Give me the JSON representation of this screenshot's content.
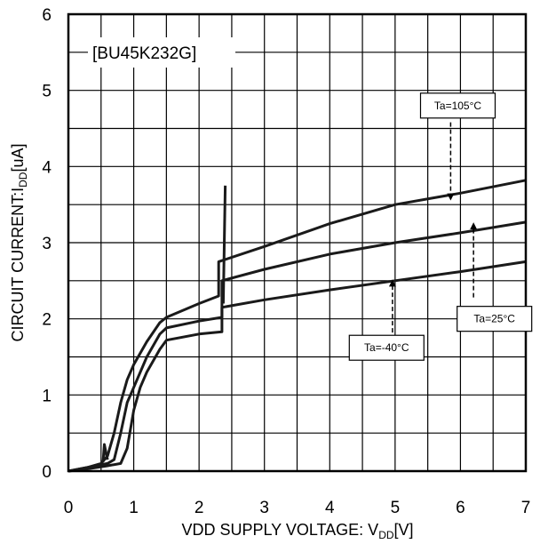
{
  "chart_data": {
    "type": "line",
    "part_label": "[BU45K232G]",
    "xlabel_main": "VDD SUPPLY VOLTAGE:  V",
    "xlabel_sub": "DD",
    "xlabel_unit": "[V]",
    "ylabel_main": "CIRCUIT CURRENT:I",
    "ylabel_sub": "DD",
    "ylabel_unit": "[uA]",
    "xlim": [
      0,
      7
    ],
    "ylim": [
      0,
      6
    ],
    "x_major_ticks": [
      0,
      1,
      2,
      3,
      4,
      5,
      6,
      7
    ],
    "x_tick_labels": [
      "0",
      "1",
      "2",
      "3",
      "4",
      "5",
      "6",
      "7"
    ],
    "y_major_ticks": [
      0,
      1,
      2,
      3,
      4,
      5,
      6
    ],
    "y_tick_labels": [
      "0",
      "1",
      "2",
      "3",
      "4",
      "5",
      "6"
    ],
    "minor_grid_step_x": 0.5,
    "minor_grid_step_y": 0.5,
    "grid": true,
    "line_color": "#1a1a1a",
    "series": [
      {
        "condition": "Ta=105°C",
        "points": [
          [
            0,
            0
          ],
          [
            0.3,
            0.05
          ],
          [
            0.5,
            0.1
          ],
          [
            0.6,
            0.2
          ],
          [
            0.7,
            0.5
          ],
          [
            0.8,
            0.9
          ],
          [
            0.9,
            1.2
          ],
          [
            1.0,
            1.4
          ],
          [
            1.2,
            1.7
          ],
          [
            1.4,
            1.95
          ],
          [
            1.5,
            2.02
          ],
          [
            2.0,
            2.2
          ],
          [
            2.3,
            2.3
          ],
          [
            2.3,
            2.75
          ],
          [
            3.0,
            2.95
          ],
          [
            4.0,
            3.25
          ],
          [
            5.0,
            3.5
          ],
          [
            6.0,
            3.65
          ],
          [
            7.0,
            3.82
          ]
        ]
      },
      {
        "condition": "Ta=25°C",
        "points": [
          [
            0,
            0
          ],
          [
            0.3,
            0.05
          ],
          [
            0.6,
            0.1
          ],
          [
            0.7,
            0.15
          ],
          [
            0.8,
            0.5
          ],
          [
            0.9,
            0.9
          ],
          [
            1.0,
            1.1
          ],
          [
            1.2,
            1.5
          ],
          [
            1.4,
            1.8
          ],
          [
            1.5,
            1.88
          ],
          [
            2.0,
            1.97
          ],
          [
            2.35,
            2.02
          ],
          [
            2.35,
            2.5
          ],
          [
            3.0,
            2.65
          ],
          [
            4.0,
            2.85
          ],
          [
            5.0,
            3.0
          ],
          [
            6.0,
            3.13
          ],
          [
            7.0,
            3.27
          ]
        ]
      },
      {
        "condition": "Ta=-40°C",
        "points": [
          [
            0,
            0
          ],
          [
            0.3,
            0.03
          ],
          [
            0.6,
            0.07
          ],
          [
            0.8,
            0.1
          ],
          [
            0.9,
            0.3
          ],
          [
            1.0,
            0.8
          ],
          [
            1.1,
            1.1
          ],
          [
            1.2,
            1.3
          ],
          [
            1.4,
            1.6
          ],
          [
            1.5,
            1.72
          ],
          [
            2.0,
            1.8
          ],
          [
            2.35,
            1.83
          ],
          [
            2.35,
            2.15
          ],
          [
            3.0,
            2.25
          ],
          [
            4.0,
            2.38
          ],
          [
            5.0,
            2.5
          ],
          [
            6.0,
            2.62
          ],
          [
            7.0,
            2.75
          ]
        ]
      }
    ],
    "spikes": [
      {
        "points": [
          [
            0.53,
            0.12
          ],
          [
            0.55,
            0.35
          ],
          [
            0.58,
            0.22
          ],
          [
            0.6,
            0.15
          ]
        ]
      },
      {
        "points": [
          [
            2.37,
            2.2
          ],
          [
            2.4,
            3.75
          ]
        ]
      }
    ],
    "annotations": [
      {
        "text": "Ta=105°C",
        "box_center": [
          5.96,
          4.8
        ],
        "arrow_from": [
          5.85,
          4.58
        ],
        "arrow_to": [
          5.85,
          3.6
        ]
      },
      {
        "text": "Ta=25°C",
        "box_center": [
          6.52,
          2.0
        ],
        "arrow_from": [
          6.2,
          2.28
        ],
        "arrow_to": [
          6.2,
          3.22
        ]
      },
      {
        "text": "Ta=-40°C",
        "box_center": [
          4.87,
          1.62
        ],
        "arrow_from": [
          4.96,
          1.82
        ],
        "arrow_to": [
          4.96,
          2.47
        ]
      }
    ]
  }
}
